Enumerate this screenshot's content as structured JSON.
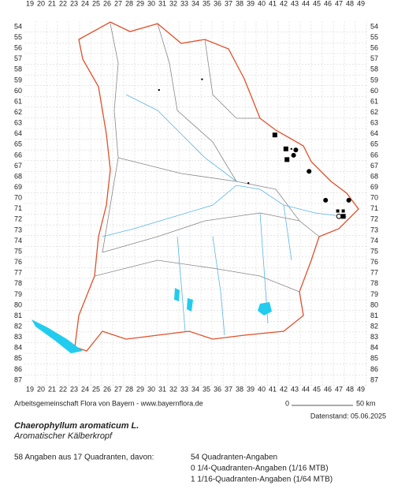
{
  "columns": [
    19,
    20,
    21,
    22,
    23,
    24,
    25,
    26,
    27,
    28,
    29,
    30,
    31,
    32,
    33,
    34,
    35,
    36,
    37,
    38,
    39,
    40,
    41,
    42,
    43,
    44,
    45,
    46,
    47,
    48,
    49
  ],
  "rows": [
    54,
    55,
    56,
    57,
    58,
    59,
    60,
    61,
    62,
    63,
    64,
    65,
    66,
    67,
    68,
    69,
    70,
    71,
    72,
    73,
    74,
    75,
    76,
    77,
    78,
    79,
    80,
    81,
    82,
    83,
    84,
    85,
    86,
    87
  ],
  "observations": [
    {
      "kind": "square",
      "col": 41.2,
      "row": 64.1
    },
    {
      "kind": "square",
      "col": 42.2,
      "row": 65.4
    },
    {
      "kind": "dot",
      "col": 43.1,
      "row": 65.5
    },
    {
      "kind": "small-dot",
      "col": 42.7,
      "row": 65.4
    },
    {
      "kind": "square",
      "col": 42.3,
      "row": 66.4
    },
    {
      "kind": "dot",
      "col": 42.9,
      "row": 66.0
    },
    {
      "kind": "dot",
      "col": 44.3,
      "row": 67.5
    },
    {
      "kind": "dot",
      "col": 45.8,
      "row": 70.2
    },
    {
      "kind": "dot",
      "col": 47.9,
      "row": 70.2
    },
    {
      "kind": "small-square",
      "col": 46.9,
      "row": 71.2
    },
    {
      "kind": "small-square",
      "col": 47.4,
      "row": 71.2
    },
    {
      "kind": "square",
      "col": 47.4,
      "row": 71.7
    },
    {
      "kind": "circle",
      "col": 47.0,
      "row": 71.7
    },
    {
      "kind": "small-dot",
      "col": 34.6,
      "row": 58.9
    },
    {
      "kind": "small-dot",
      "col": 30.7,
      "row": 59.9
    },
    {
      "kind": "small-dot",
      "col": 38.8,
      "row": 68.6
    }
  ],
  "credit": "Arbeitsgemeinschaft Flora von Bayern - www.bayernflora.de",
  "scale_start": "0",
  "scale_end": "50 km",
  "date": "Datenstand: 05.06.2025",
  "title": "Chaerophyllum aromaticum L.",
  "subtitle": "Aromatischer Kälberkropf",
  "summary": "58 Angaben aus 17 Quadranten, davon:",
  "details": [
    "54 Quadranten-Angaben",
    "0 1/4-Quadranten-Angaben (1/16 MTB)",
    "1 1/16-Quadranten-Angaben (1/64 MTB)"
  ]
}
